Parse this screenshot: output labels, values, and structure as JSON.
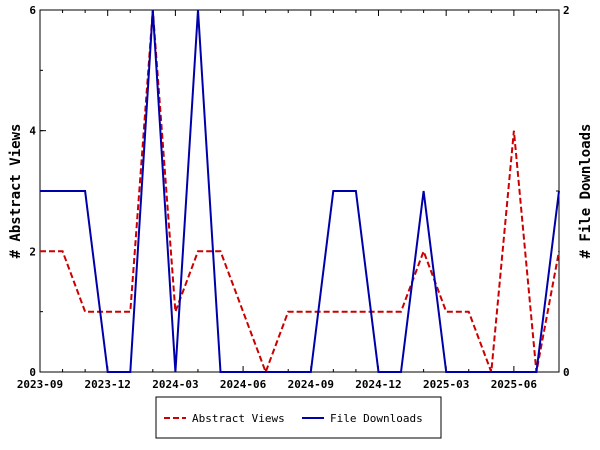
{
  "chart_data": {
    "type": "line",
    "x": [
      "2023-09",
      "2023-10",
      "2023-11",
      "2023-12",
      "2024-01",
      "2024-02",
      "2024-03",
      "2024-04",
      "2024-05",
      "2024-06",
      "2024-07",
      "2024-08",
      "2024-09",
      "2024-10",
      "2024-11",
      "2024-12",
      "2025-01",
      "2025-02",
      "2025-03",
      "2025-04",
      "2025-05",
      "2025-06",
      "2025-07",
      "2025-08"
    ],
    "x_tick_labels": [
      "2023-09",
      "2023-12",
      "2024-03",
      "2024-06",
      "2024-09",
      "2024-12",
      "2025-03",
      "2025-06"
    ],
    "series": [
      {
        "name": "Abstract Views",
        "axis": "left",
        "color": "#cc0000",
        "dash": "dashed",
        "values": [
          2,
          2,
          1,
          1,
          1,
          6,
          1,
          2,
          2,
          1,
          0,
          1,
          1,
          1,
          1,
          1,
          1,
          2,
          1,
          1,
          0,
          4,
          0,
          2
        ]
      },
      {
        "name": "File Downloads",
        "axis": "right",
        "color": "#0000aa",
        "dash": "solid",
        "values": [
          1,
          1,
          1,
          0,
          0,
          2,
          0,
          2,
          0,
          0,
          0,
          0,
          0,
          1,
          1,
          0,
          0,
          1,
          0,
          0,
          0,
          0,
          0,
          1
        ]
      }
    ],
    "ylabel": "# Abstract Views",
    "y2label": "# File Downloads",
    "ylim": [
      0,
      6
    ],
    "y2lim": [
      0,
      2
    ],
    "yticks": [
      "0",
      "2",
      "4",
      "6"
    ],
    "y2ticks": [
      "0",
      "2"
    ],
    "grid": false,
    "legend_position": "bottom"
  }
}
